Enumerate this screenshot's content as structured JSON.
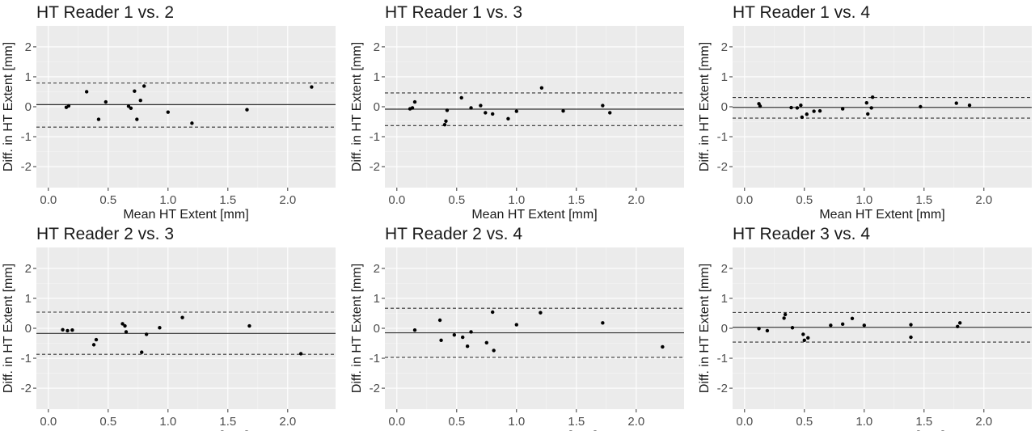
{
  "chart_data": [
    {
      "type": "scatter",
      "title": "HT Reader 1 vs. 2",
      "xlabel": "Mean HT Extent [mm]",
      "ylabel": "Diff. in HT Extent [mm]",
      "xlim": [
        -0.1,
        2.4
      ],
      "ylim": [
        -2.7,
        2.7
      ],
      "xticks": [
        "0.0",
        "0.5",
        "1.0",
        "1.5",
        "2.0"
      ],
      "yticks": [
        "-2",
        "-1",
        "0",
        "1",
        "2"
      ],
      "grid": true,
      "mean_diff": 0.07,
      "loa": [
        -0.68,
        0.79
      ],
      "points": [
        [
          0.15,
          -0.02
        ],
        [
          0.17,
          0.03
        ],
        [
          0.32,
          0.5
        ],
        [
          0.42,
          -0.42
        ],
        [
          0.48,
          0.16
        ],
        [
          0.67,
          0.02
        ],
        [
          0.69,
          -0.05
        ],
        [
          0.72,
          0.52
        ],
        [
          0.74,
          -0.42
        ],
        [
          0.77,
          0.21
        ],
        [
          0.8,
          0.69
        ],
        [
          1.0,
          -0.18
        ],
        [
          1.2,
          -0.55
        ],
        [
          1.66,
          -0.1
        ],
        [
          2.2,
          0.66
        ]
      ]
    },
    {
      "type": "scatter",
      "title": "HT Reader 1 vs. 3",
      "xlabel": "Mean HT Extent [mm]",
      "ylabel": "Diff. in HT Extent [mm]",
      "xlim": [
        -0.1,
        2.4
      ],
      "ylim": [
        -2.7,
        2.7
      ],
      "xticks": [
        "0.0",
        "0.5",
        "1.0",
        "1.5",
        "2.0"
      ],
      "yticks": [
        "-2",
        "-1",
        "0",
        "1",
        "2"
      ],
      "grid": true,
      "mean_diff": -0.08,
      "loa": [
        -0.63,
        0.46
      ],
      "points": [
        [
          0.11,
          -0.07
        ],
        [
          0.13,
          -0.04
        ],
        [
          0.15,
          0.16
        ],
        [
          0.4,
          -0.6
        ],
        [
          0.41,
          -0.48
        ],
        [
          0.42,
          -0.12
        ],
        [
          0.54,
          0.3
        ],
        [
          0.62,
          -0.04
        ],
        [
          0.7,
          0.04
        ],
        [
          0.74,
          -0.2
        ],
        [
          0.8,
          -0.24
        ],
        [
          0.93,
          -0.4
        ],
        [
          1.0,
          -0.15
        ],
        [
          1.21,
          0.63
        ],
        [
          1.39,
          -0.14
        ],
        [
          1.72,
          0.04
        ],
        [
          1.78,
          -0.2
        ]
      ]
    },
    {
      "type": "scatter",
      "title": "HT Reader 1 vs. 4",
      "xlabel": "Mean HT Extent [mm]",
      "ylabel": "Diff. in HT Extent [mm]",
      "xlim": [
        -0.1,
        2.4
      ],
      "ylim": [
        -2.7,
        2.7
      ],
      "xticks": [
        "0.0",
        "0.5",
        "1.0",
        "1.5",
        "2.0"
      ],
      "yticks": [
        "-2",
        "-1",
        "0",
        "1",
        "2"
      ],
      "grid": true,
      "mean_diff": -0.02,
      "loa": [
        -0.38,
        0.31
      ],
      "points": [
        [
          0.12,
          0.1
        ],
        [
          0.13,
          0.02
        ],
        [
          0.39,
          -0.03
        ],
        [
          0.44,
          -0.04
        ],
        [
          0.47,
          0.05
        ],
        [
          0.48,
          -0.35
        ],
        [
          0.52,
          -0.25
        ],
        [
          0.58,
          -0.15
        ],
        [
          0.63,
          -0.14
        ],
        [
          0.82,
          -0.07
        ],
        [
          1.02,
          0.13
        ],
        [
          1.03,
          -0.24
        ],
        [
          1.06,
          -0.04
        ],
        [
          1.07,
          0.32
        ],
        [
          1.47,
          0.0
        ],
        [
          1.77,
          0.12
        ],
        [
          1.88,
          0.05
        ]
      ]
    },
    {
      "type": "scatter",
      "title": "HT Reader 2 vs. 3",
      "xlabel": "Mean HT Extent [mm]",
      "ylabel": "Diff. in HT Extent [mm]",
      "xlim": [
        -0.1,
        2.4
      ],
      "ylim": [
        -2.7,
        2.7
      ],
      "xticks": [
        "0.0",
        "0.5",
        "1.0",
        "1.5",
        "2.0"
      ],
      "yticks": [
        "-2",
        "-1",
        "0",
        "1",
        "2"
      ],
      "grid": true,
      "mean_diff": -0.17,
      "loa": [
        -0.87,
        0.54
      ],
      "points": [
        [
          0.12,
          -0.05
        ],
        [
          0.16,
          -0.08
        ],
        [
          0.2,
          -0.06
        ],
        [
          0.38,
          -0.55
        ],
        [
          0.4,
          -0.38
        ],
        [
          0.62,
          0.15
        ],
        [
          0.64,
          0.08
        ],
        [
          0.65,
          -0.12
        ],
        [
          0.78,
          -0.8
        ],
        [
          0.82,
          -0.2
        ],
        [
          0.93,
          0.02
        ],
        [
          1.12,
          0.36
        ],
        [
          1.68,
          0.08
        ],
        [
          2.11,
          -0.85
        ]
      ]
    },
    {
      "type": "scatter",
      "title": "HT Reader 2 vs. 4",
      "xlabel": "Mean HT Extent [mm]",
      "ylabel": "Diff. in HT Extent [mm]",
      "xlim": [
        -0.1,
        2.4
      ],
      "ylim": [
        -2.7,
        2.7
      ],
      "xticks": [
        "0.0",
        "0.5",
        "1.0",
        "1.5",
        "2.0"
      ],
      "yticks": [
        "-2",
        "-1",
        "0",
        "1",
        "2"
      ],
      "grid": true,
      "mean_diff": -0.15,
      "loa": [
        -0.97,
        0.67
      ],
      "points": [
        [
          0.15,
          -0.06
        ],
        [
          0.36,
          0.27
        ],
        [
          0.37,
          -0.4
        ],
        [
          0.48,
          -0.22
        ],
        [
          0.55,
          -0.3
        ],
        [
          0.59,
          -0.6
        ],
        [
          0.62,
          -0.12
        ],
        [
          0.75,
          -0.48
        ],
        [
          0.8,
          0.54
        ],
        [
          0.81,
          -0.74
        ],
        [
          1.0,
          0.12
        ],
        [
          1.2,
          0.52
        ],
        [
          1.72,
          0.18
        ],
        [
          2.22,
          -0.62
        ]
      ]
    },
    {
      "type": "scatter",
      "title": "HT Reader 3 vs. 4",
      "xlabel": "Mean HT Extent [mm]",
      "ylabel": "Diff. in HT Extent [mm]",
      "xlim": [
        -0.1,
        2.4
      ],
      "ylim": [
        -2.7,
        2.7
      ],
      "xticks": [
        "0.0",
        "0.5",
        "1.0",
        "1.5",
        "2.0"
      ],
      "yticks": [
        "-2",
        "-1",
        "0",
        "1",
        "2"
      ],
      "grid": true,
      "mean_diff": 0.03,
      "loa": [
        -0.46,
        0.53
      ],
      "points": [
        [
          0.12,
          -0.01
        ],
        [
          0.19,
          -0.08
        ],
        [
          0.33,
          0.34
        ],
        [
          0.34,
          0.46
        ],
        [
          0.4,
          0.02
        ],
        [
          0.49,
          -0.2
        ],
        [
          0.5,
          -0.4
        ],
        [
          0.53,
          -0.32
        ],
        [
          0.72,
          0.1
        ],
        [
          0.82,
          0.14
        ],
        [
          0.9,
          0.33
        ],
        [
          1.0,
          0.1
        ],
        [
          1.39,
          0.12
        ],
        [
          1.39,
          -0.3
        ],
        [
          1.78,
          0.06
        ],
        [
          1.8,
          0.18
        ]
      ]
    }
  ]
}
